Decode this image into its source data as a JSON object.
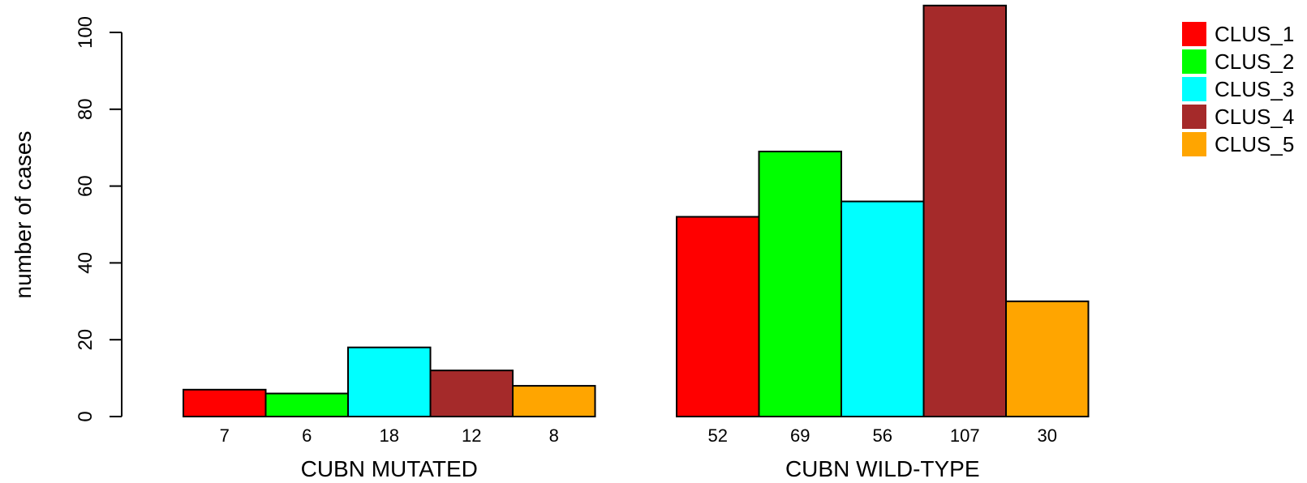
{
  "chart_data": {
    "type": "bar",
    "ylabel": "number of cases",
    "ylim": [
      0,
      100
    ],
    "yticks": [
      0,
      20,
      40,
      60,
      80,
      100
    ],
    "categories": [
      "CUBN MUTATED",
      "CUBN WILD-TYPE"
    ],
    "series": [
      {
        "name": "CLUS_1",
        "color": "#ff0000",
        "values": [
          7,
          52
        ]
      },
      {
        "name": "CLUS_2",
        "color": "#00ff00",
        "values": [
          6,
          69
        ]
      },
      {
        "name": "CLUS_3",
        "color": "#00ffff",
        "values": [
          18,
          56
        ]
      },
      {
        "name": "CLUS_4",
        "color": "#a52a2a",
        "values": [
          12,
          107
        ]
      },
      {
        "name": "CLUS_5",
        "color": "#ffa500",
        "values": [
          8,
          30
        ]
      }
    ],
    "legend": "top-right",
    "grid": false
  }
}
